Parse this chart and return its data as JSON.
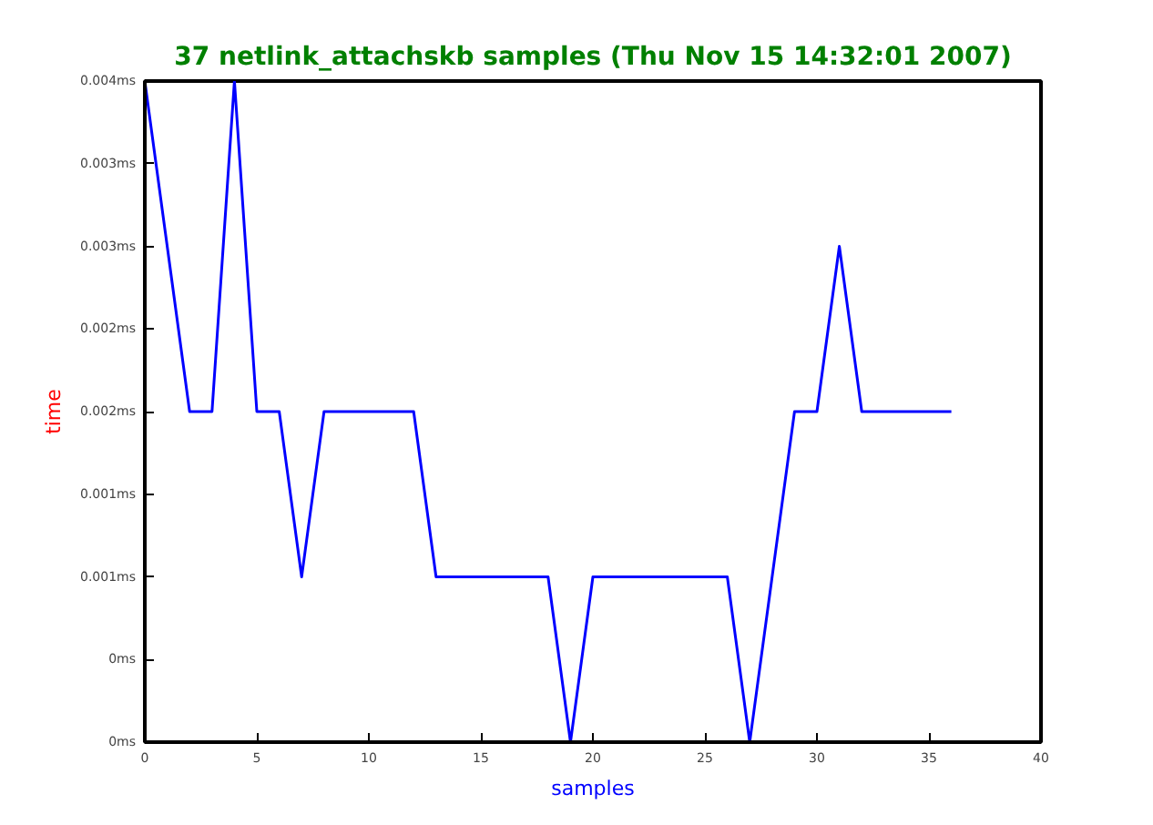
{
  "chart_data": {
    "type": "line",
    "title": "37 netlink_attachskb samples (Thu Nov 15 14:32:01 2007)",
    "xlabel": "samples",
    "ylabel": "time",
    "x": [
      0,
      1,
      2,
      3,
      4,
      5,
      6,
      7,
      8,
      9,
      10,
      11,
      12,
      13,
      14,
      15,
      16,
      17,
      18,
      19,
      20,
      21,
      22,
      23,
      24,
      25,
      26,
      27,
      28,
      29,
      30,
      31,
      32,
      33,
      34,
      35,
      36
    ],
    "series": [
      {
        "color": "#0000ff",
        "values": [
          0.004,
          0.003,
          0.002,
          0.002,
          0.004,
          0.002,
          0.002,
          0.001,
          0.002,
          0.002,
          0.002,
          0.002,
          0.002,
          0.001,
          0.001,
          0.001,
          0.001,
          0.001,
          0.001,
          0,
          0.001,
          0.001,
          0.001,
          0.001,
          0.001,
          0.001,
          0.001,
          0,
          0.001,
          0.002,
          0.002,
          0.003,
          0.002,
          0.002,
          0.002,
          0.002,
          0.002
        ]
      }
    ],
    "xlim": [
      0,
      40
    ],
    "xticks": [
      0,
      5,
      10,
      15,
      20,
      25,
      30,
      35,
      40
    ],
    "ylim": [
      0,
      0.004
    ],
    "yticks": [
      {
        "value": 0,
        "label": "0ms"
      },
      {
        "value": 0.0005,
        "label": "0ms"
      },
      {
        "value": 0.001,
        "label": "0.001ms"
      },
      {
        "value": 0.0015,
        "label": "0.001ms"
      },
      {
        "value": 0.002,
        "label": "0.002ms"
      },
      {
        "value": 0.0025,
        "label": "0.002ms"
      },
      {
        "value": 0.003,
        "label": "0.003ms"
      },
      {
        "value": 0.0035,
        "label": "0.003ms"
      },
      {
        "value": 0.004,
        "label": "0.004ms"
      }
    ],
    "grid": false,
    "marker": "none",
    "line_style": "solid"
  }
}
